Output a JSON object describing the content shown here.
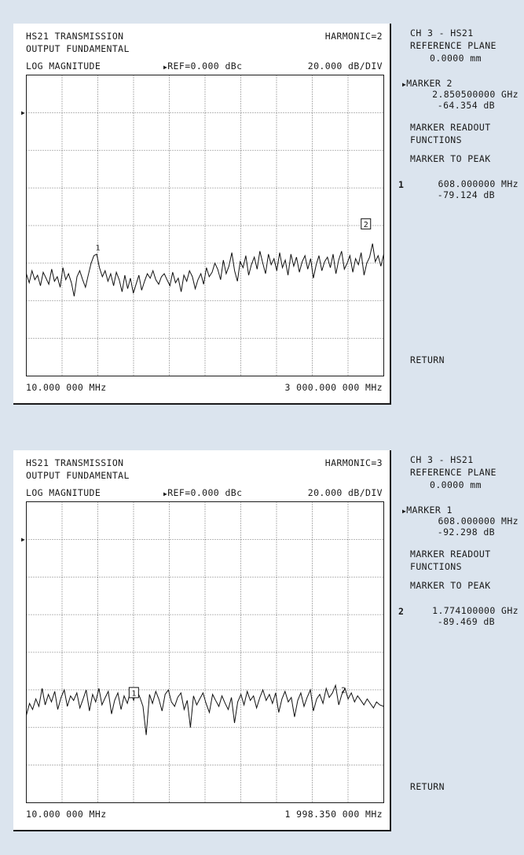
{
  "panels": [
    {
      "title_line1": "HS21 TRANSMISSION",
      "title_line2": "OUTPUT FUNDAMENTAL",
      "harmonic": "HARMONIC=2",
      "format": "LOG MAGNITUDE",
      "ref": "REF=0.000 dBc",
      "scale": "20.000 dB/DIV",
      "start_freq": "10.000 000 MHz",
      "stop_freq": "3 000.000 000 MHz",
      "softkeys": {
        "channel": "CH 3 - HS21",
        "reference_plane": "REFERENCE PLANE",
        "reference_plane_value": "0.0000 mm",
        "active_marker": "MARKER 2",
        "active_marker_freq": "2.850500000 GHz",
        "active_marker_level": "-64.354 dB",
        "readout_line1": "MARKER READOUT",
        "readout_line2": "FUNCTIONS",
        "marker_to_peak": "MARKER TO PEAK",
        "other_marker_number": "1",
        "other_marker_freq": "608.000000 MHz",
        "other_marker_level": "-79.124 dB",
        "return": "RETURN"
      }
    },
    {
      "title_line1": "HS21 TRANSMISSION",
      "title_line2": "OUTPUT FUNDAMENTAL",
      "harmonic": "HARMONIC=3",
      "format": "LOG MAGNITUDE",
      "ref": "REF=0.000 dBc",
      "scale": "20.000 dB/DIV",
      "start_freq": "10.000 000 MHz",
      "stop_freq": "1 998.350 000 MHz",
      "softkeys": {
        "channel": "CH 3 - HS21",
        "reference_plane": "REFERENCE PLANE",
        "reference_plane_value": "0.0000 mm",
        "active_marker": "MARKER 1",
        "active_marker_freq": "608.000000 MHz",
        "active_marker_level": "-92.298 dB",
        "readout_line1": "MARKER READOUT",
        "readout_line2": "FUNCTIONS",
        "marker_to_peak": "MARKER TO PEAK",
        "other_marker_number": "2",
        "other_marker_freq": "1.774100000 GHz",
        "other_marker_level": "-89.469 dB",
        "return": "RETURN"
      }
    }
  ],
  "chart_data": [
    {
      "type": "line",
      "xlabel": "",
      "ylabel": "",
      "xlim": [
        10,
        3000
      ],
      "ylim": [
        -160,
        40
      ],
      "reference_dbc": 0,
      "grid": true,
      "x_divisions": 10,
      "y_divisions": 8,
      "series": [
        {
          "x": [
            10,
            34,
            57,
            81,
            104,
            128,
            151,
            175,
            198,
            222,
            245,
            269,
            293,
            316,
            340,
            363,
            387,
            410,
            434,
            457,
            481,
            505,
            528,
            552,
            575,
            599,
            622,
            646,
            669,
            693,
            716,
            740,
            763,
            787,
            811,
            834,
            858,
            881,
            905,
            928,
            952,
            975,
            999,
            1022,
            1046,
            1069,
            1093,
            1117,
            1140,
            1164,
            1187,
            1211,
            1234,
            1258,
            1281,
            1305,
            1328,
            1352,
            1375,
            1399,
            1423,
            1446,
            1470,
            1493,
            1517,
            1540,
            1564,
            1587,
            1611,
            1635,
            1658,
            1682,
            1705,
            1729,
            1752,
            1776,
            1799,
            1823,
            1846,
            1870,
            1893,
            1917,
            1941,
            1964,
            1988,
            2011,
            2035,
            2058,
            2082,
            2105,
            2129,
            2152,
            2176,
            2199,
            2223,
            2247,
            2270,
            2294,
            2317,
            2341,
            2364,
            2388,
            2411,
            2435,
            2458,
            2482,
            2505,
            2529,
            2553,
            2576,
            2600,
            2623,
            2647,
            2670,
            2694,
            2717,
            2741,
            2764,
            2788,
            2811,
            2835,
            2858,
            2882,
            2906,
            2929,
            2953,
            2976,
            3000
          ],
          "values": [
            -92,
            -98,
            -90,
            -96,
            -93,
            -100,
            -91,
            -95,
            -99,
            -89,
            -97,
            -94,
            -101,
            -88,
            -96,
            -92,
            -98,
            -107,
            -94,
            -90,
            -96,
            -101,
            -93,
            -85,
            -80,
            -79,
            -88,
            -94,
            -90,
            -97,
            -92,
            -100,
            -91,
            -96,
            -104,
            -93,
            -102,
            -95,
            -105,
            -99,
            -93,
            -103,
            -97,
            -92,
            -95,
            -90,
            -96,
            -99,
            -94,
            -92,
            -96,
            -100,
            -91,
            -98,
            -95,
            -104,
            -93,
            -97,
            -90,
            -94,
            -102,
            -96,
            -92,
            -99,
            -88,
            -94,
            -91,
            -85,
            -89,
            -96,
            -83,
            -92,
            -87,
            -78,
            -90,
            -97,
            -84,
            -88,
            -80,
            -93,
            -86,
            -81,
            -89,
            -77,
            -85,
            -92,
            -79,
            -86,
            -82,
            -90,
            -78,
            -88,
            -83,
            -93,
            -79,
            -87,
            -81,
            -91,
            -84,
            -80,
            -89,
            -82,
            -95,
            -86,
            -80,
            -90,
            -84,
            -81,
            -88,
            -79,
            -92,
            -83,
            -77,
            -89,
            -85,
            -80,
            -91,
            -82,
            -86,
            -78,
            -93,
            -85,
            -81,
            -72,
            -84,
            -80,
            -87,
            -79
          ]
        }
      ],
      "markers": [
        {
          "label": "1",
          "x": 608,
          "y": -79.124,
          "boxed": false
        },
        {
          "label": "2",
          "x": 2850.5,
          "y": -64.354,
          "boxed": true
        }
      ]
    },
    {
      "type": "line",
      "xlabel": "",
      "ylabel": "",
      "xlim": [
        10,
        1998.35
      ],
      "ylim": [
        -160,
        40
      ],
      "reference_dbc": 0,
      "grid": true,
      "x_divisions": 10,
      "y_divisions": 8,
      "series": [
        {
          "x": [
            10,
            28,
            45,
            63,
            80,
            98,
            115,
            133,
            150,
            168,
            185,
            203,
            221,
            238,
            256,
            273,
            291,
            308,
            326,
            343,
            361,
            379,
            396,
            414,
            431,
            449,
            466,
            484,
            501,
            519,
            537,
            554,
            572,
            589,
            607,
            624,
            642,
            659,
            677,
            695,
            712,
            730,
            747,
            765,
            782,
            800,
            817,
            835,
            852,
            870,
            888,
            905,
            923,
            940,
            958,
            975,
            993,
            1010,
            1028,
            1046,
            1063,
            1081,
            1098,
            1116,
            1133,
            1151,
            1168,
            1186,
            1204,
            1221,
            1239,
            1256,
            1274,
            1291,
            1309,
            1326,
            1344,
            1362,
            1379,
            1397,
            1414,
            1432,
            1449,
            1467,
            1484,
            1502,
            1520,
            1537,
            1555,
            1572,
            1590,
            1607,
            1625,
            1642,
            1660,
            1678,
            1695,
            1713,
            1730,
            1748,
            1765,
            1783,
            1800,
            1818,
            1836,
            1853,
            1871,
            1888,
            1906,
            1923,
            1941,
            1958,
            1976,
            1998
          ],
          "values": [
            -102,
            -94,
            -98,
            -91,
            -96,
            -84,
            -95,
            -88,
            -93,
            -86,
            -98,
            -90,
            -85,
            -96,
            -89,
            -92,
            -87,
            -97,
            -91,
            -85,
            -99,
            -88,
            -93,
            -84,
            -95,
            -90,
            -86,
            -101,
            -92,
            -87,
            -98,
            -89,
            -94,
            -86,
            -92,
            -85,
            -90,
            -96,
            -115,
            -88,
            -94,
            -86,
            -91,
            -99,
            -88,
            -85,
            -93,
            -96,
            -90,
            -87,
            -98,
            -92,
            -110,
            -89,
            -95,
            -91,
            -87,
            -94,
            -100,
            -88,
            -92,
            -96,
            -89,
            -94,
            -98,
            -90,
            -107,
            -93,
            -88,
            -95,
            -86,
            -92,
            -89,
            -97,
            -90,
            -85,
            -92,
            -88,
            -94,
            -87,
            -100,
            -91,
            -86,
            -93,
            -90,
            -103,
            -92,
            -87,
            -96,
            -90,
            -85,
            -99,
            -91,
            -88,
            -94,
            -84,
            -90,
            -87,
            -82,
            -95,
            -88,
            -84,
            -91,
            -87,
            -93,
            -89,
            -92,
            -95,
            -91,
            -94,
            -97,
            -93,
            -95,
            -96
          ]
        }
      ],
      "markers": [
        {
          "label": "1",
          "x": 608,
          "y": -92.298,
          "boxed": true
        },
        {
          "label": "2",
          "x": 1774.1,
          "y": -89.469,
          "boxed": false
        }
      ]
    }
  ]
}
